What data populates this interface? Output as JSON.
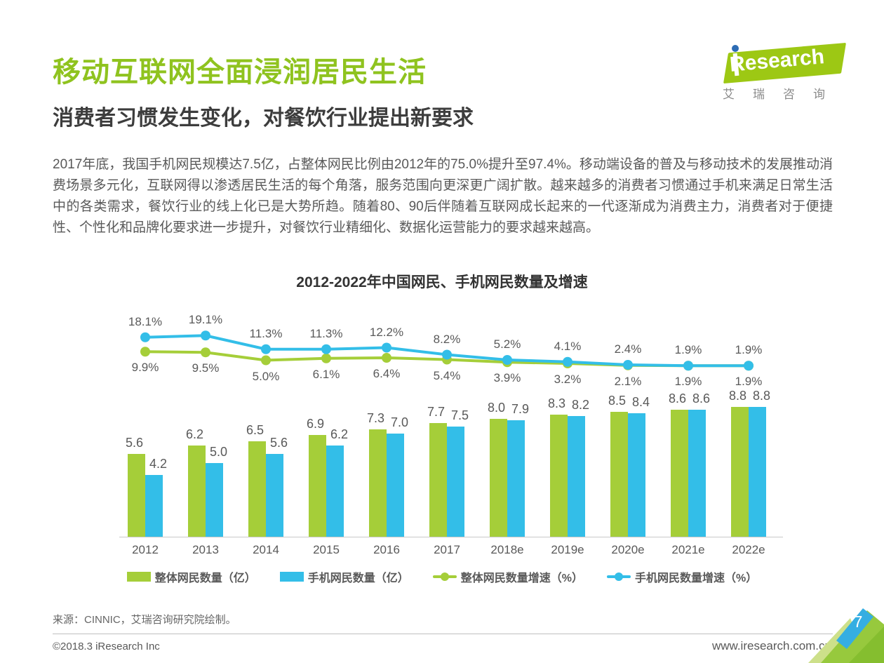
{
  "page": {
    "title": "移动互联网全面浸润居民生活",
    "subtitle": "消费者习惯发生变化，对餐饮行业提出新要求",
    "body": "2017年底，我国手机网民规模达7.5亿，占整体网民比例由2012年的75.0%提升至97.4%。移动端设备的普及与移动技术的发展推动消费场景多元化，互联网得以渗透居民生活的每个角落，服务范围向更深更广阔扩散。越来越多的消费者习惯通过手机来满足日常生活中的各类需求，餐饮行业的线上化已是大势所趋。随着80、90后伴随着互联网成长起来的一代逐渐成为消费主力，消费者对于便捷性、个性化和品牌化要求进一步提升，对餐饮行业精细化、数据化运营能力的要求越来越高。",
    "source": "来源：CINNIC，艾瑞咨询研究院绘制。",
    "footer_left": "©2018.3 iResearch Inc",
    "footer_right": "www.iresearch.com.cn",
    "page_number": "7"
  },
  "logo": {
    "brand": "Research",
    "subtext": "艾瑞咨询"
  },
  "colors": {
    "brand_green": "#8FC31F",
    "bar_green": "#A5CE39",
    "bar_blue": "#33BEE8",
    "corner_blue": "#35AEE2",
    "text_dark": "#3D3D3D",
    "text_body": "#595959"
  },
  "chart_data": {
    "type": "bar",
    "subtype": "combo bar+line, dual axis",
    "title": "2012-2022年中国网民、手机网民数量及增速",
    "categories": [
      "2012",
      "2013",
      "2014",
      "2015",
      "2016",
      "2017",
      "2018e",
      "2019e",
      "2020e",
      "2021e",
      "2022e"
    ],
    "series": [
      {
        "name": "整体网民数量（亿）",
        "type": "bar",
        "color": "#A5CE39",
        "values": [
          5.6,
          6.2,
          6.5,
          6.9,
          7.3,
          7.7,
          8.0,
          8.3,
          8.5,
          8.6,
          8.8
        ]
      },
      {
        "name": "手机网民数量（亿）",
        "type": "bar",
        "color": "#33BEE8",
        "values": [
          4.2,
          5.0,
          5.6,
          6.2,
          7.0,
          7.5,
          7.9,
          8.2,
          8.4,
          8.6,
          8.8
        ]
      },
      {
        "name": "整体网民数量增速（%）",
        "type": "line",
        "color": "#A5CE39",
        "unit": "%",
        "values": [
          9.9,
          9.5,
          5.0,
          6.1,
          6.4,
          5.4,
          3.9,
          3.2,
          2.1,
          1.9,
          1.9
        ]
      },
      {
        "name": "手机网民数量增速（%）",
        "type": "line",
        "color": "#33BEE8",
        "unit": "%",
        "values": [
          18.1,
          19.1,
          11.3,
          11.3,
          12.2,
          8.2,
          5.2,
          4.1,
          2.4,
          1.9,
          1.9
        ]
      }
    ],
    "xlabel": "",
    "ylabel": "",
    "grid": false,
    "legend_position": "bottom",
    "data_labels": true
  }
}
